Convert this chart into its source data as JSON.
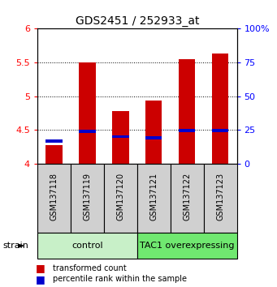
{
  "title": "GDS2451 / 252933_at",
  "samples": [
    "GSM137118",
    "GSM137119",
    "GSM137120",
    "GSM137121",
    "GSM137122",
    "GSM137123"
  ],
  "red_values": [
    4.27,
    5.5,
    4.78,
    4.93,
    5.55,
    5.63
  ],
  "blue_values": [
    4.33,
    4.48,
    4.4,
    4.38,
    4.49,
    4.49
  ],
  "ylim_left": [
    4.0,
    6.0
  ],
  "ylim_right": [
    0,
    100
  ],
  "yticks_left": [
    4.0,
    4.5,
    5.0,
    5.5,
    6.0
  ],
  "yticks_right": [
    0,
    25,
    50,
    75,
    100
  ],
  "ytick_labels_left": [
    "4",
    "4.5",
    "5",
    "5.5",
    "6"
  ],
  "ytick_labels_right": [
    "0",
    "25",
    "50",
    "75",
    "100%"
  ],
  "groups": [
    {
      "label": "control",
      "indices": [
        0,
        1,
        2
      ],
      "color": "#c8f0c8"
    },
    {
      "label": "TAC1 overexpressing",
      "indices": [
        3,
        4,
        5
      ],
      "color": "#70e870"
    }
  ],
  "bar_color_red": "#cc0000",
  "bar_color_blue": "#0000cc",
  "bar_width": 0.5,
  "bar_bottom": 4.0,
  "tick_area_bg": "#d0d0d0",
  "legend_red": "transformed count",
  "legend_blue": "percentile rank within the sample"
}
